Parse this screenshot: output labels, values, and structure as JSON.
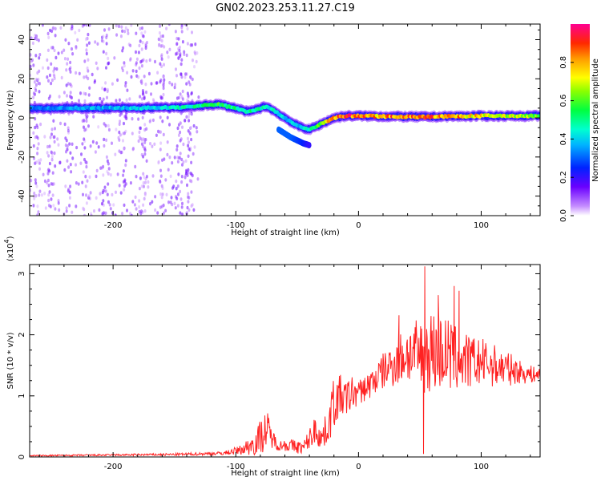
{
  "title": "GN02.2023.253.11.27.C19",
  "chart_data": [
    {
      "type": "heatmap",
      "xlabel": "Height of straight line (km)",
      "ylabel": "Frequency (Hz)",
      "xlim": [
        -268,
        148
      ],
      "ylim": [
        -50,
        48
      ],
      "xticks": [
        -200,
        -100,
        0,
        100
      ],
      "yticks": [
        -40,
        -20,
        0,
        20,
        40
      ],
      "colorbar": {
        "label": "Normalized spectral amplitude",
        "range": [
          0,
          1
        ],
        "ticks": [
          0.0,
          0.2,
          0.4,
          0.6,
          0.8
        ],
        "tick_labels": [
          "0.0",
          "0.2",
          "0.4",
          "0.6",
          "0.8"
        ]
      },
      "ridge": {
        "x": [
          -268,
          -230,
          -180,
          -140,
          -115,
          -100,
          -90,
          -75,
          -60,
          -50,
          -40,
          -30,
          -20,
          -10,
          0,
          50,
          100,
          148
        ],
        "y": [
          5,
          5,
          5,
          5.5,
          7,
          5,
          3,
          6,
          0,
          -4,
          -6,
          -3,
          0,
          1,
          1,
          0.5,
          1,
          1
        ],
        "amplitude": [
          0.3,
          0.35,
          0.4,
          0.45,
          0.55,
          0.5,
          0.5,
          0.45,
          0.4,
          0.4,
          0.45,
          0.6,
          0.85,
          0.9,
          0.8,
          0.85,
          0.75,
          0.6
        ]
      },
      "branch": {
        "x": [
          -65,
          -55,
          -45,
          -40
        ],
        "y": [
          -6,
          -10,
          -13,
          -14
        ],
        "amplitude": [
          0.3,
          0.3,
          0.25,
          0.2
        ]
      },
      "noise_region": {
        "x_range": [
          -268,
          -130
        ],
        "y_range": [
          -50,
          48
        ]
      }
    },
    {
      "type": "line",
      "xlabel": "Height of straight line (km)",
      "ylabel": "SNR (10 * v/v)",
      "multiplier_label": "(x10",
      "multiplier_exp": "4",
      "multiplier_close": ")",
      "xlim": [
        -268,
        148
      ],
      "ylim": [
        0,
        3.15
      ],
      "xticks": [
        -200,
        -100,
        0,
        100
      ],
      "yticks": [
        0,
        1,
        2,
        3
      ],
      "color": "#ff2222",
      "series": [
        {
          "x": [
            -268,
            -150,
            -110,
            -95,
            -85,
            -75,
            -70,
            -65,
            -60,
            -55,
            -45,
            -35,
            -30,
            -25,
            -20,
            -15,
            -10,
            -5,
            0,
            10,
            20,
            30,
            40,
            50,
            60,
            70,
            80,
            90,
            100,
            110,
            120,
            130,
            140,
            148
          ],
          "y": [
            0.02,
            0.04,
            0.06,
            0.12,
            0.22,
            0.45,
            0.3,
            0.18,
            0.2,
            0.18,
            0.15,
            0.45,
            0.3,
            0.5,
            0.9,
            1.0,
            0.95,
            1.05,
            1.05,
            1.2,
            1.4,
            1.55,
            1.7,
            1.65,
            1.75,
            1.7,
            1.6,
            1.55,
            1.55,
            1.5,
            1.45,
            1.4,
            1.35,
            1.35
          ],
          "spread": [
            0.01,
            0.02,
            0.03,
            0.08,
            0.2,
            0.35,
            0.15,
            0.08,
            0.1,
            0.12,
            0.1,
            0.25,
            0.2,
            0.3,
            0.45,
            0.35,
            0.3,
            0.3,
            0.2,
            0.25,
            0.3,
            0.4,
            0.5,
            0.6,
            0.7,
            0.65,
            0.55,
            0.45,
            0.4,
            0.35,
            0.3,
            0.2,
            0.15,
            0.1
          ],
          "peaks": [
            {
              "x": 54,
              "y": 3.12
            },
            {
              "x": 53,
              "y": 0.05
            },
            {
              "x": 78,
              "y": 2.8
            },
            {
              "x": 65,
              "y": 2.65
            },
            {
              "x": 82,
              "y": 2.72
            },
            {
              "x": 33,
              "y": 2.32
            }
          ]
        }
      ]
    }
  ]
}
